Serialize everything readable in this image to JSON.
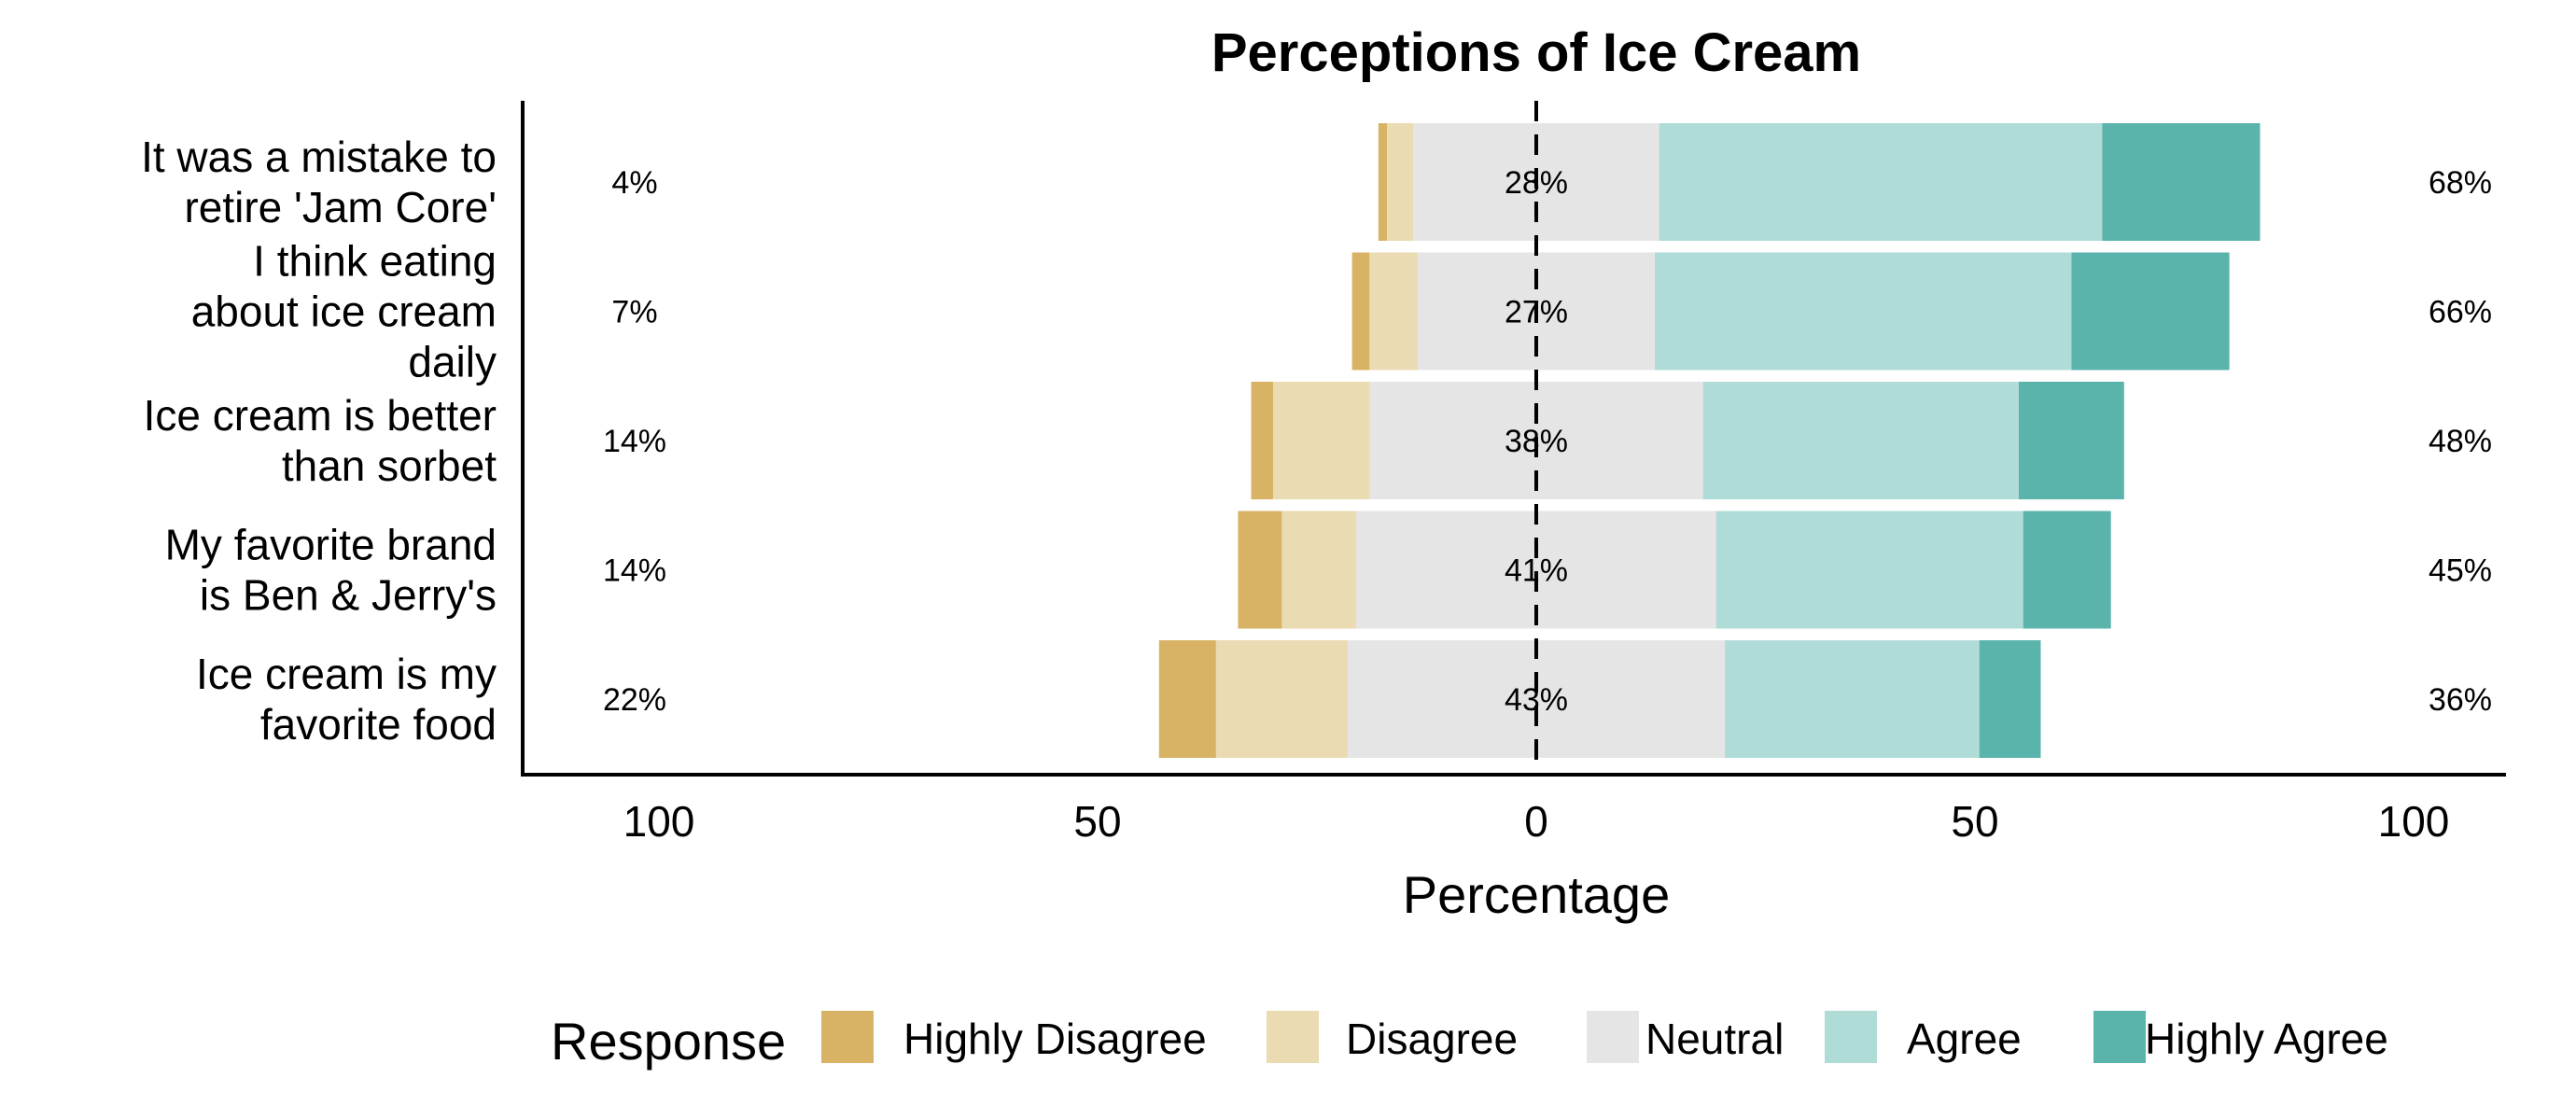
{
  "chart_data": {
    "type": "bar",
    "orientation": "horizontal-diverging",
    "title": "Perceptions of Ice Cream",
    "xlabel": "Percentage",
    "xlim": [
      -100,
      100
    ],
    "x_ticks": [
      -100,
      -50,
      0,
      50,
      100
    ],
    "x_tick_labels": [
      "100",
      "50",
      "0",
      "50",
      "100"
    ],
    "categories": [
      "It was a mistake to retire 'Jam Core'",
      "I think eating about ice cream daily",
      "Ice cream is better than sorbet",
      "My favorite brand is Ben & Jerry's",
      "Ice cream is my favorite food"
    ],
    "category_lines": [
      [
        "It was a mistake to",
        "retire 'Jam Core'"
      ],
      [
        "I think eating",
        "about ice cream",
        "daily"
      ],
      [
        "Ice cream is better",
        "than sorbet"
      ],
      [
        "My favorite brand",
        "is Ben & Jerry's"
      ],
      [
        "Ice cream is my",
        "favorite food"
      ]
    ],
    "series": [
      {
        "name": "Highly Disagree",
        "color": "#d8b365",
        "values": [
          1,
          2,
          2.5,
          5,
          6.5
        ]
      },
      {
        "name": "Disagree",
        "color": "#ebdbb2",
        "values": [
          3,
          5.5,
          11,
          8.5,
          15
        ]
      },
      {
        "name": "Neutral",
        "color": "#e5e5e5",
        "values": [
          28,
          27,
          38,
          41,
          43
        ]
      },
      {
        "name": "Agree",
        "color": "#b0dcd7",
        "values": [
          50.5,
          47.5,
          36,
          35,
          29
        ]
      },
      {
        "name": "Highly Agree",
        "color": "#5ab4ac",
        "values": [
          18,
          18,
          12,
          10,
          7
        ]
      }
    ],
    "labels_low": [
      "4%",
      "7%",
      "14%",
      "14%",
      "22%"
    ],
    "labels_neutral": [
      "28%",
      "27%",
      "38%",
      "41%",
      "43%"
    ],
    "labels_high": [
      "68%",
      "66%",
      "48%",
      "45%",
      "36%"
    ],
    "legend": {
      "title": "Response",
      "position": "bottom"
    },
    "grid": false
  }
}
